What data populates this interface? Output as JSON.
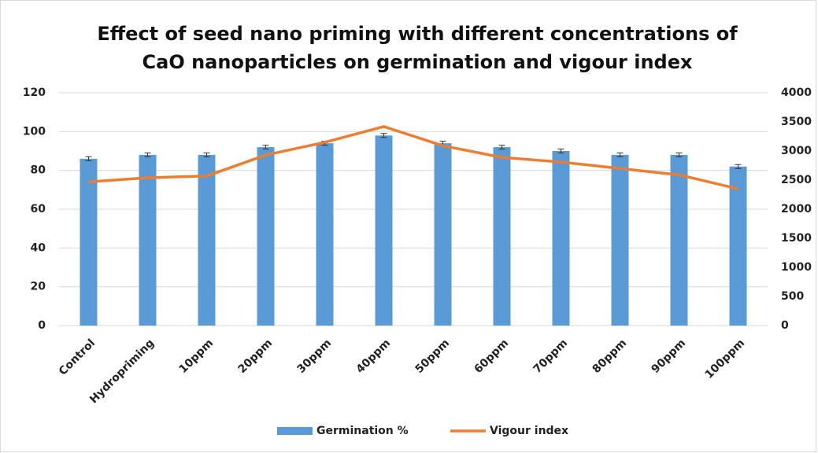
{
  "chart_data": {
    "type": "bar_line",
    "title": [
      "Effect of seed nano priming with different concentrations of",
      "CaO nanoparticles on germination and vigour index"
    ],
    "categories": [
      "Control",
      "Hydropriming",
      "10ppm",
      "20ppm",
      "30ppm",
      "40ppm",
      "50ppm",
      "60ppm",
      "70ppm",
      "80ppm",
      "90ppm",
      "100ppm"
    ],
    "series": [
      {
        "name": "Germination %",
        "color": "#5b9bd5",
        "type": "bar",
        "values": [
          86,
          88,
          88,
          92,
          94,
          98,
          94,
          92,
          90,
          88,
          88,
          82
        ],
        "errors": [
          1,
          1,
          1,
          1,
          1,
          1,
          1,
          1,
          1,
          1,
          1,
          1
        ]
      },
      {
        "name": "Vigour index",
        "color": "#ed7d31",
        "type": "line",
        "axis": "y2",
        "values": [
          2470,
          2540,
          2570,
          2930,
          3150,
          3420,
          3090,
          2890,
          2810,
          2700,
          2590,
          2350
        ]
      }
    ],
    "ylim": [
      0,
      120
    ],
    "yticks": [
      0,
      20,
      40,
      60,
      80,
      100,
      120
    ],
    "y2lim": [
      0,
      4000
    ],
    "y2ticks": [
      0,
      500,
      1000,
      1500,
      2000,
      2500,
      3000,
      3500,
      4000
    ],
    "grid": true,
    "legend": "bottom"
  }
}
